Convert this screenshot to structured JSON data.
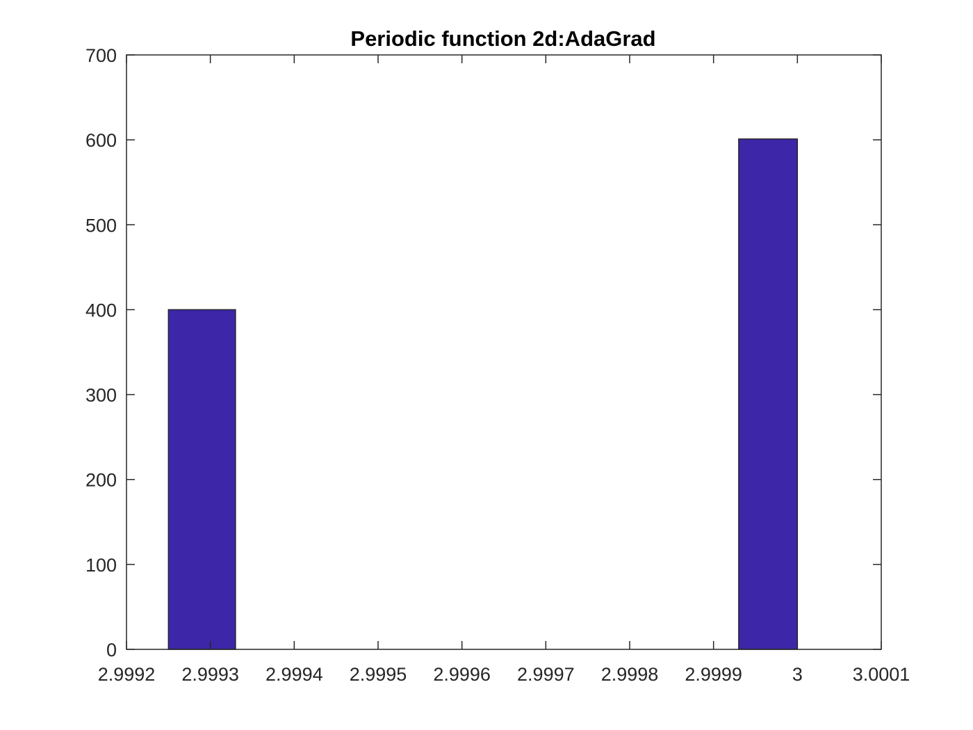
{
  "chart_data": {
    "type": "bar",
    "title": "Periodic function 2d:AdaGrad",
    "xlabel": "",
    "ylabel": "",
    "xlim": [
      2.9992,
      3.0001
    ],
    "ylim": [
      0,
      700
    ],
    "xticks": [
      2.9992,
      2.9993,
      2.9994,
      2.9995,
      2.9996,
      2.9997,
      2.9998,
      2.9999,
      3.0,
      3.0001
    ],
    "xtick_labels": [
      "2.9992",
      "2.9993",
      "2.9994",
      "2.9995",
      "2.9996",
      "2.9997",
      "2.9998",
      "2.9999",
      "3",
      "3.0001"
    ],
    "yticks": [
      0,
      100,
      200,
      300,
      400,
      500,
      600,
      700
    ],
    "ytick_labels": [
      "0",
      "100",
      "200",
      "300",
      "400",
      "500",
      "600",
      "700"
    ],
    "bars": [
      {
        "x_start": 2.99925,
        "x_end": 2.99933,
        "value": 400
      },
      {
        "x_start": 2.99993,
        "x_end": 3.0,
        "value": 601
      }
    ],
    "grid": false,
    "bar_color": "#3e26a8",
    "bar_edge_color": "#262626",
    "axis_color": "#262626"
  }
}
